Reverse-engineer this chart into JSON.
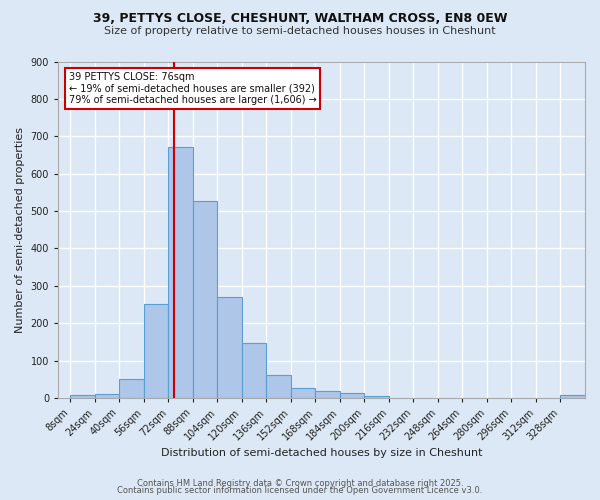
{
  "title1": "39, PETTYS CLOSE, CHESHUNT, WALTHAM CROSS, EN8 0EW",
  "title2": "Size of property relative to semi-detached houses houses in Cheshunt",
  "xlabel": "Distribution of semi-detached houses by size in Cheshunt",
  "ylabel": "Number of semi-detached properties",
  "bar_labels": [
    "8sqm",
    "24sqm",
    "40sqm",
    "56sqm",
    "72sqm",
    "88sqm",
    "104sqm",
    "120sqm",
    "136sqm",
    "152sqm",
    "168sqm",
    "184sqm",
    "200sqm",
    "216sqm",
    "232sqm",
    "248sqm",
    "264sqm",
    "280sqm",
    "296sqm",
    "312sqm",
    "328sqm"
  ],
  "bar_left_edges": [
    8,
    24,
    40,
    56,
    72,
    88,
    104,
    120,
    136,
    152,
    168,
    184,
    200,
    216,
    232,
    248,
    264,
    280,
    296,
    312,
    328
  ],
  "bar_values": [
    7,
    12,
    52,
    252,
    670,
    527,
    270,
    148,
    62,
    28,
    19,
    14,
    5,
    1,
    0,
    0,
    0,
    0,
    0,
    0,
    8
  ],
  "bar_color": "#aec6e8",
  "bar_edge_color": "#5a9fd4",
  "bg_color": "#dce8f5",
  "grid_color": "#ffffff",
  "vline_x": 76,
  "bin_width": 16,
  "annotation_title": "39 PETTYS CLOSE: 76sqm",
  "annotation_line1": "← 19% of semi-detached houses are smaller (392)",
  "annotation_line2": "79% of semi-detached houses are larger (1,606) →",
  "annotation_box_color": "#ffffff",
  "annotation_box_edge": "#cc0000",
  "vline_color": "#cc0000",
  "footnote1": "Contains HM Land Registry data © Crown copyright and database right 2025.",
  "footnote2": "Contains public sector information licensed under the Open Government Licence v3.0.",
  "ylim": [
    0,
    900
  ],
  "xlim": [
    0,
    344
  ],
  "yticks": [
    0,
    100,
    200,
    300,
    400,
    500,
    600,
    700,
    800,
    900
  ]
}
